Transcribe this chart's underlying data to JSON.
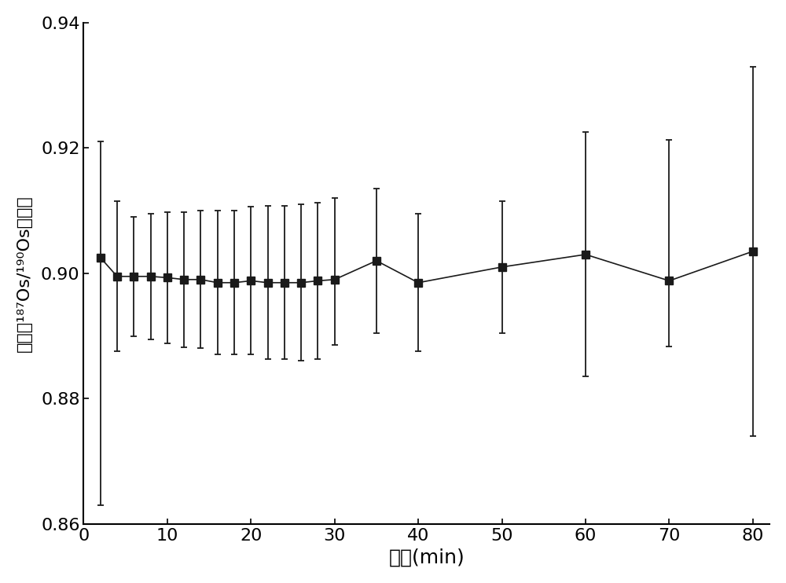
{
  "x": [
    2,
    4,
    6,
    8,
    10,
    12,
    14,
    16,
    18,
    20,
    22,
    24,
    26,
    28,
    30,
    35,
    40,
    50,
    60,
    70,
    80
  ],
  "y": [
    0.9025,
    0.8995,
    0.8995,
    0.8995,
    0.8993,
    0.899,
    0.899,
    0.8985,
    0.8985,
    0.8988,
    0.8985,
    0.8985,
    0.8985,
    0.8988,
    0.899,
    0.902,
    0.8985,
    0.901,
    0.903,
    0.8988,
    0.9035
  ],
  "yerr_upper": [
    0.0185,
    0.012,
    0.0095,
    0.01,
    0.0105,
    0.0108,
    0.011,
    0.0115,
    0.0115,
    0.0118,
    0.0122,
    0.0122,
    0.0125,
    0.0125,
    0.013,
    0.0115,
    0.011,
    0.0105,
    0.0195,
    0.0225,
    0.0295
  ],
  "yerr_lower": [
    0.0395,
    0.012,
    0.0095,
    0.01,
    0.0105,
    0.0108,
    0.011,
    0.0115,
    0.0115,
    0.0118,
    0.0122,
    0.0122,
    0.0125,
    0.0125,
    0.0105,
    0.0115,
    0.011,
    0.0105,
    0.0195,
    0.0105,
    0.0295
  ],
  "xlabel": "时间(min)",
  "ylabel_line1": "测得（",
  "ylabel_line2": "¹⁸⁷Os/¹⁹⁰Os）比値",
  "ylabel_full": "测得（¹⁸⁷Os/¹⁹⁰Os）比値",
  "xlim": [
    0,
    82
  ],
  "ylim": [
    0.86,
    0.94
  ],
  "xticks": [
    0,
    10,
    20,
    30,
    40,
    50,
    60,
    70,
    80
  ],
  "yticks": [
    0.86,
    0.88,
    0.9,
    0.92,
    0.94
  ],
  "background_color": "#ffffff",
  "line_color": "#1a1a1a",
  "marker_color": "#1a1a1a",
  "marker": "s",
  "markersize": 7,
  "linewidth": 1.2,
  "capsize": 3,
  "xlabel_fontsize": 18,
  "ylabel_fontsize": 16,
  "tick_fontsize": 16
}
